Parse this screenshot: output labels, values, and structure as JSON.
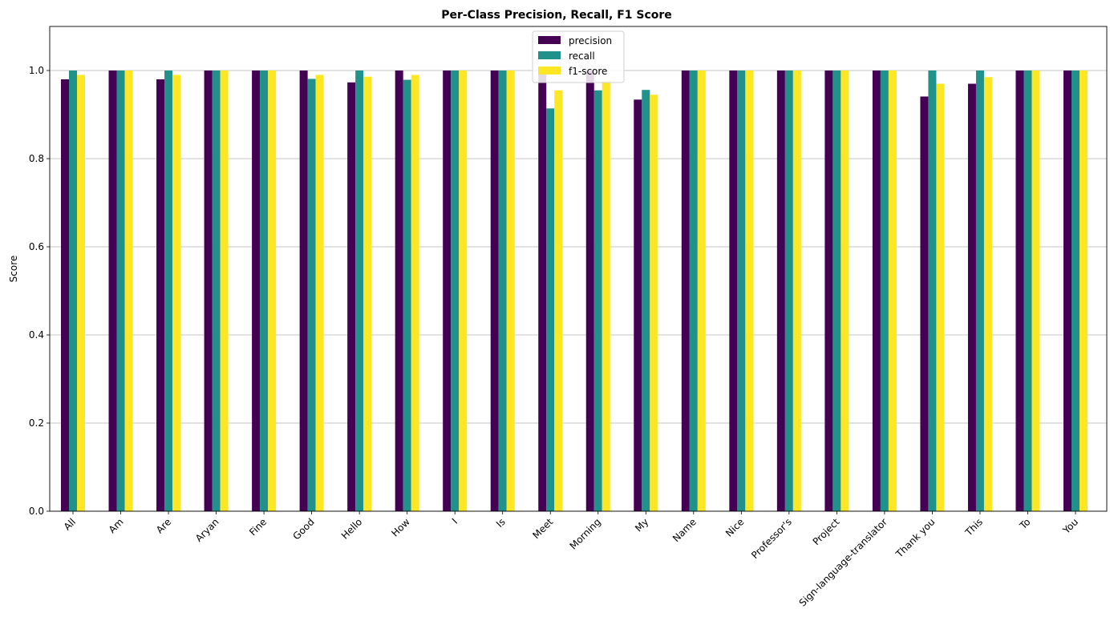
{
  "chart_data": {
    "type": "bar",
    "title": "Per-Class Precision, Recall, F1 Score",
    "xlabel": "",
    "ylabel": "Score",
    "ylim": [
      0,
      1.1
    ],
    "yticks": [
      "0.0",
      "0.2",
      "0.4",
      "0.6",
      "0.8",
      "1.0"
    ],
    "grid": "horizontal",
    "legend_position": "top-center",
    "categories": [
      "All",
      "Am",
      "Are",
      "Aryan",
      "Fine",
      "Good",
      "Hello",
      "How",
      "I",
      "Is",
      "Meet",
      "Morning",
      "My",
      "Name",
      "Nice",
      "Professor's",
      "Project",
      "Sign-language-translator",
      "Thank you",
      "This",
      "To",
      "You"
    ],
    "series": [
      {
        "name": "precision",
        "color": "#440154",
        "values": [
          0.98,
          1.0,
          0.98,
          1.0,
          1.0,
          1.0,
          0.973,
          1.0,
          1.0,
          1.0,
          1.0,
          1.0,
          0.934,
          1.0,
          1.0,
          1.0,
          1.0,
          1.0,
          0.941,
          0.97,
          1.0,
          1.0
        ]
      },
      {
        "name": "recall",
        "color": "#21918c",
        "values": [
          1.0,
          1.0,
          1.0,
          1.0,
          1.0,
          0.981,
          1.0,
          0.979,
          1.0,
          1.0,
          0.914,
          0.955,
          0.956,
          1.0,
          1.0,
          1.0,
          1.0,
          1.0,
          1.0,
          1.0,
          1.0,
          1.0
        ]
      },
      {
        "name": "f1-score",
        "color": "#fde725",
        "values": [
          0.99,
          1.0,
          0.99,
          1.0,
          1.0,
          0.99,
          0.986,
          0.99,
          1.0,
          1.0,
          0.955,
          0.977,
          0.945,
          1.0,
          1.0,
          1.0,
          1.0,
          1.0,
          0.97,
          0.985,
          1.0,
          1.0
        ]
      }
    ]
  }
}
